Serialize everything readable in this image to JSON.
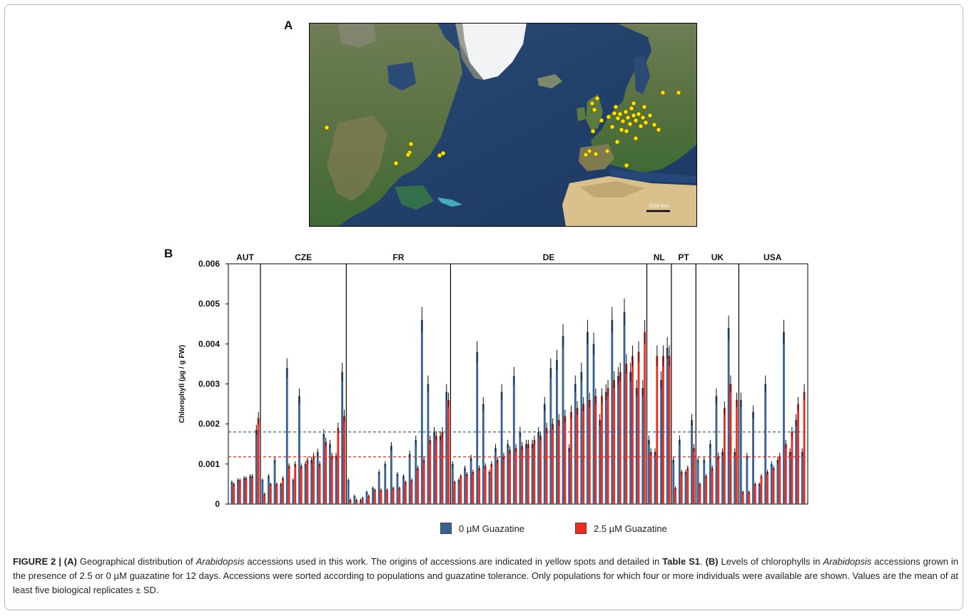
{
  "panels": {
    "a_label": "A",
    "b_label": "B",
    "scale_bar_label": "1000 Km"
  },
  "map_data": {
    "accession_color": "#ffe600",
    "marker_description": "yellow spots"
  },
  "chart_data": {
    "type": "bar",
    "ylabel": "Chlorophyll (µg / g FW)",
    "ylim": [
      0,
      0.006
    ],
    "yticks": [
      "0",
      "0.001",
      "0.002",
      "0.003",
      "0.004",
      "0.005",
      "0.006"
    ],
    "ytick_values": [
      0,
      0.001,
      0.002,
      0.003,
      0.004,
      0.005,
      0.006
    ],
    "grid": false,
    "legend_position": "bottom",
    "groups": [
      {
        "name": "AUT",
        "count": 5
      },
      {
        "name": "CZE",
        "count": 14
      },
      {
        "name": "FR",
        "count": 17
      },
      {
        "name": "DE",
        "count": 32
      },
      {
        "name": "NL",
        "count": 4
      },
      {
        "name": "PT",
        "count": 4
      },
      {
        "name": "UK",
        "count": 7
      },
      {
        "name": "USA",
        "count": 11
      }
    ],
    "series": [
      {
        "name": "0 µM Guazatine",
        "color": "#3a6291",
        "values": [
          0.00055,
          0.0006,
          0.00065,
          0.0007,
          0.00185,
          0.0006,
          0.0007,
          0.0011,
          0.0005,
          0.0034,
          0.0006,
          0.0027,
          0.001,
          0.0011,
          0.0013,
          0.00175,
          0.0015,
          0.0012,
          0.0033,
          0.0006,
          0.0002,
          0.0001,
          0.0003,
          0.0004,
          0.0008,
          0.001,
          0.00145,
          0.00075,
          0.0007,
          0.00125,
          0.0016,
          0.0046,
          0.003,
          0.0018,
          0.0017,
          0.0028,
          0.001,
          0.0006,
          0.0009,
          0.00115,
          0.0038,
          0.0025,
          0.0008,
          0.0014,
          0.0028,
          0.0015,
          0.0032,
          0.0018,
          0.0015,
          0.0015,
          0.0018,
          0.0025,
          0.0034,
          0.0036,
          0.0042,
          0.0014,
          0.003,
          0.0033,
          0.0043,
          0.004,
          0.0021,
          0.0028,
          0.0046,
          0.0032,
          0.0048,
          0.0033,
          0.0029,
          0.0029,
          0.0016,
          0.0013,
          0.0031,
          0.0039,
          0.0011,
          0.0016,
          0.0008,
          0.0021,
          0.0011,
          0.0011,
          0.0015,
          0.0027,
          0.0013,
          0.0044,
          0.0013,
          0.0026,
          0.0012,
          0.0023,
          0.0005,
          0.003,
          0.001,
          0.0011,
          0.0043,
          0.0013,
          0.0021,
          0.0013
        ]
      },
      {
        "name": "2.5 µM Guazatine",
        "color": "#f02a1c",
        "values": [
          0.0005,
          0.0006,
          0.00065,
          0.0007,
          0.00215,
          0.00025,
          0.0005,
          0.0005,
          0.00065,
          0.00095,
          0.001,
          0.00095,
          0.0011,
          0.0012,
          0.001,
          0.00155,
          0.0012,
          0.0019,
          0.0022,
          0.0001,
          0.0001,
          0.00015,
          0.0002,
          0.00035,
          0.00035,
          0.00035,
          0.0004,
          0.0004,
          0.00055,
          0.0006,
          0.0009,
          0.0011,
          0.0016,
          0.0017,
          0.0018,
          0.0026,
          0.00055,
          0.0007,
          0.00075,
          0.0008,
          0.0009,
          0.00095,
          0.001,
          0.0011,
          0.0012,
          0.00135,
          0.0014,
          0.00145,
          0.0015,
          0.0016,
          0.0017,
          0.0019,
          0.002,
          0.0021,
          0.0022,
          0.0023,
          0.0024,
          0.0025,
          0.0026,
          0.0027,
          0.0027,
          0.0029,
          0.0031,
          0.0033,
          0.0035,
          0.0037,
          0.0038,
          0.0043,
          0.0013,
          0.0037,
          0.0037,
          0.0037,
          0.0004,
          0.0008,
          0.0009,
          0.0014,
          0.0005,
          0.0007,
          0.0009,
          0.0012,
          0.0024,
          0.003,
          0.0026,
          0.0003,
          0.0003,
          0.0005,
          0.0007,
          0.0008,
          0.0009,
          0.0012,
          0.0015,
          0.0018,
          0.0025,
          0.0028
        ]
      }
    ],
    "reference_lines": [
      {
        "series": "0 µM Guazatine",
        "value": 0.0018
      },
      {
        "series": "2.5 µM Guazatine",
        "value": 0.00118
      }
    ]
  },
  "legend": {
    "item0": "0 µM Guazatine",
    "item1": "2.5 µM Guazatine"
  },
  "caption": {
    "figure_label": "FIGURE 2 | ",
    "a_ref": "(A)",
    "a_text_1": " Geographical distribution of ",
    "a_species": "Arabidopsis",
    "a_text_2": " accessions used in this work. The origins of accessions are indicated in yellow spots and detailed in ",
    "a_table": "Table S1",
    "a_end": ".",
    "b_ref": "(B)",
    "b_text_1": " Levels of chlorophylls in ",
    "b_species": "Arabidopsis",
    "b_text_2": " accessions grown in the presence of 2.5 or 0 µM guazatine for 12 days. Accessions were sorted according to populations and guazatine tolerance. Only populations for which four or more individuals were available are shown. Values are the mean of at least five biological replicates ± SD."
  }
}
